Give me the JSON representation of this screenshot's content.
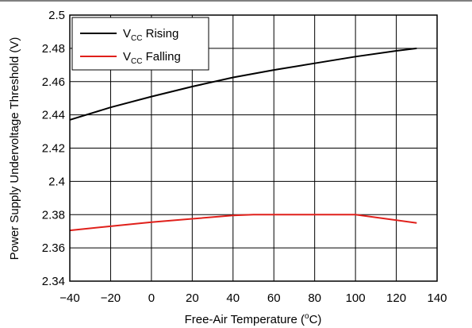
{
  "chart_data": {
    "type": "line",
    "title": "",
    "xlabel": "Free-Air Temperature (°C)",
    "xlabel_parts": [
      "Free-Air Temperature (",
      "o",
      "C)"
    ],
    "ylabel": "Power Supply Undervoltage Threshold (V)",
    "xlim": [
      -40,
      140
    ],
    "ylim": [
      2.34,
      2.5
    ],
    "x_ticks": [
      -40,
      -20,
      0,
      20,
      40,
      60,
      80,
      100,
      120,
      140
    ],
    "x_tick_labels": [
      "−40",
      "−20",
      "0",
      "20",
      "40",
      "60",
      "80",
      "100",
      "120",
      "140"
    ],
    "y_ticks": [
      2.34,
      2.36,
      2.38,
      2.4,
      2.42,
      2.44,
      2.46,
      2.48,
      2.5
    ],
    "y_tick_labels": [
      "2.34",
      "2.36",
      "2.38",
      "2.4",
      "2.42",
      "2.44",
      "2.46",
      "2.48",
      "2.5"
    ],
    "grid": true,
    "legend_position": "top-left",
    "series": [
      {
        "name": "VCC Rising",
        "label_main": "V",
        "label_sub": "CC",
        "label_rest": " Rising",
        "color": "#000000",
        "x": [
          -40,
          -20,
          0,
          20,
          40,
          60,
          80,
          100,
          120,
          130
        ],
        "y": [
          2.437,
          2.4445,
          2.451,
          2.457,
          2.4625,
          2.467,
          2.471,
          2.475,
          2.4785,
          2.48
        ]
      },
      {
        "name": "VCC Falling",
        "label_main": "V",
        "label_sub": "CC",
        "label_rest": " Falling",
        "color": "#e0201b",
        "x": [
          -40,
          -20,
          0,
          20,
          40,
          50,
          60,
          80,
          100,
          130
        ],
        "y": [
          2.3705,
          2.373,
          2.3755,
          2.3775,
          2.3795,
          2.38,
          2.38,
          2.38,
          2.38,
          2.375
        ]
      }
    ]
  }
}
